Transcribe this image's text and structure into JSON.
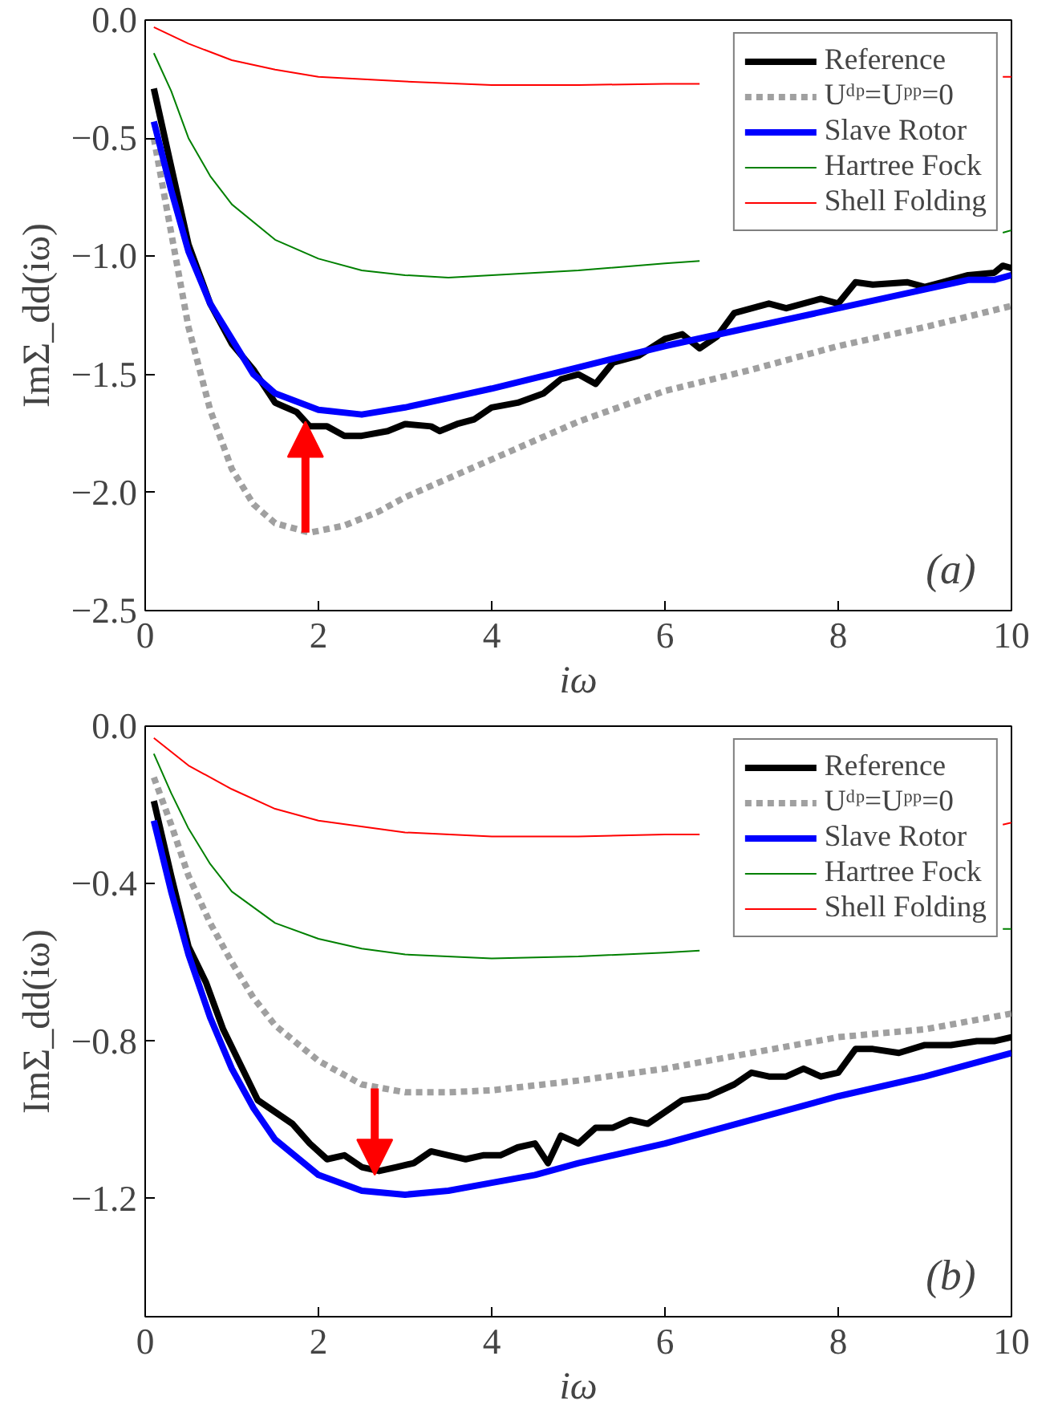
{
  "chart_data": [
    {
      "type": "line",
      "xlabel": "iω",
      "ylabel": "ImΣ_dd(iω)",
      "xlim": [
        0,
        10
      ],
      "ylim": [
        -2.5,
        0
      ],
      "xticks": [
        0,
        2,
        4,
        6,
        8,
        10
      ],
      "yticks": [
        {
          "value": 0,
          "label": "0.0"
        },
        {
          "value": -0.5,
          "label": "−0.5"
        },
        {
          "value": -1,
          "label": "−1.0"
        },
        {
          "value": -1.5,
          "label": "−1.5"
        },
        {
          "value": -2,
          "label": "−2.0"
        },
        {
          "value": -2.5,
          "label": "−2.5"
        }
      ],
      "grid": false,
      "legend": "top right",
      "annotations": [
        "(a)"
      ],
      "series": [
        {
          "name": "Reference",
          "color": "#000000",
          "line_style": "solid",
          "x": [
            0.1,
            0.3,
            0.5,
            0.75,
            1,
            1.25,
            1.5,
            1.75,
            1.9,
            2.1,
            2.3,
            2.5,
            2.8,
            3.0,
            3.3,
            3.4,
            3.6,
            3.8,
            4.0,
            4.3,
            4.6,
            4.8,
            5.0,
            5.2,
            5.4,
            5.7,
            6.0,
            6.2,
            6.4,
            6.6,
            6.8,
            7.2,
            7.4,
            7.8,
            8.0,
            8.2,
            8.4,
            8.8,
            9.0,
            9.2,
            9.5,
            9.8,
            9.9,
            10
          ],
          "values": [
            -0.29,
            -0.62,
            -0.95,
            -1.2,
            -1.37,
            -1.48,
            -1.62,
            -1.66,
            -1.72,
            -1.72,
            -1.76,
            -1.76,
            -1.74,
            -1.71,
            -1.72,
            -1.74,
            -1.71,
            -1.69,
            -1.64,
            -1.62,
            -1.58,
            -1.52,
            -1.5,
            -1.54,
            -1.45,
            -1.42,
            -1.35,
            -1.33,
            -1.39,
            -1.34,
            -1.24,
            -1.2,
            -1.22,
            -1.18,
            -1.2,
            -1.11,
            -1.12,
            -1.11,
            -1.13,
            -1.11,
            -1.08,
            -1.07,
            -1.04,
            -1.05
          ]
        },
        {
          "name": "Uᵈᵖ=Uᵖᵖ=0",
          "color": "#a0a0a0",
          "line_style": "dashed",
          "x": [
            0.1,
            0.3,
            0.5,
            0.75,
            1,
            1.25,
            1.5,
            1.9,
            2.3,
            2.7,
            3,
            3.5,
            4,
            4.5,
            5,
            6,
            7,
            8,
            9,
            10
          ],
          "values": [
            -0.5,
            -0.9,
            -1.3,
            -1.65,
            -1.9,
            -2.05,
            -2.13,
            -2.17,
            -2.14,
            -2.08,
            -2.02,
            -1.94,
            -1.86,
            -1.78,
            -1.7,
            -1.57,
            -1.48,
            -1.38,
            -1.3,
            -1.21
          ]
        },
        {
          "name": "Slave Rotor",
          "color": "#0000ff",
          "line_style": "solid",
          "x": [
            0.1,
            0.3,
            0.5,
            0.75,
            1,
            1.25,
            1.5,
            2,
            2.5,
            3,
            3.5,
            4,
            5,
            6,
            7,
            8,
            9,
            9.5,
            9.8,
            10
          ],
          "values": [
            -0.43,
            -0.72,
            -0.98,
            -1.2,
            -1.35,
            -1.5,
            -1.58,
            -1.65,
            -1.67,
            -1.64,
            -1.6,
            -1.56,
            -1.47,
            -1.38,
            -1.3,
            -1.22,
            -1.14,
            -1.1,
            -1.1,
            -1.08
          ]
        },
        {
          "name": "Hartree Fock",
          "color": "#008000",
          "line_style": "solid",
          "x": [
            0.1,
            0.3,
            0.5,
            0.75,
            1,
            1.5,
            2,
            2.5,
            3,
            3.5,
            4,
            5,
            6,
            6.4,
            8,
            9.9,
            10
          ],
          "values": [
            -0.14,
            -0.3,
            -0.5,
            -0.66,
            -0.78,
            -0.93,
            -1.01,
            -1.06,
            -1.08,
            -1.09,
            -1.08,
            -1.06,
            -1.03,
            -1.02,
            null,
            -0.9,
            -0.89
          ]
        },
        {
          "name": "Shell Folding",
          "color": "#ff0000",
          "line_style": "solid",
          "x": [
            0.1,
            0.5,
            1,
            1.5,
            2,
            3,
            4,
            5,
            6,
            6.4,
            8,
            9.9,
            10
          ],
          "values": [
            -0.03,
            -0.1,
            -0.17,
            -0.21,
            -0.24,
            -0.26,
            -0.275,
            -0.275,
            -0.27,
            -0.27,
            null,
            -0.24,
            -0.24
          ]
        }
      ]
    },
    {
      "type": "line",
      "xlabel": "iω",
      "ylabel": "ImΣ_dd(iω)",
      "xlim": [
        0,
        10
      ],
      "ylim": [
        -1.5,
        0
      ],
      "xticks": [
        0,
        2,
        4,
        6,
        8,
        10
      ],
      "yticks": [
        {
          "value": 0,
          "label": "0.0"
        },
        {
          "value": -0.4,
          "label": "−0.4"
        },
        {
          "value": -0.8,
          "label": "−0.8"
        },
        {
          "value": -1.2,
          "label": "−1.2"
        }
      ],
      "grid": false,
      "legend": "top right",
      "annotations": [
        "(b)"
      ],
      "series": [
        {
          "name": "Reference",
          "color": "#000000",
          "line_style": "solid",
          "x": [
            0.1,
            0.3,
            0.5,
            0.7,
            0.9,
            1.1,
            1.3,
            1.5,
            1.7,
            1.9,
            2.1,
            2.3,
            2.5,
            2.7,
            2.9,
            3.1,
            3.3,
            3.5,
            3.7,
            3.9,
            4.1,
            4.3,
            4.5,
            4.65,
            4.8,
            5.0,
            5.2,
            5.4,
            5.6,
            5.8,
            6.0,
            6.2,
            6.5,
            6.8,
            7.0,
            7.2,
            7.4,
            7.6,
            7.8,
            8.0,
            8.2,
            8.4,
            8.7,
            9.0,
            9.3,
            9.6,
            9.8,
            10
          ],
          "values": [
            -0.19,
            -0.38,
            -0.56,
            -0.65,
            -0.77,
            -0.86,
            -0.95,
            -0.98,
            -1.01,
            -1.06,
            -1.1,
            -1.09,
            -1.12,
            -1.13,
            -1.12,
            -1.11,
            -1.08,
            -1.09,
            -1.1,
            -1.09,
            -1.09,
            -1.07,
            -1.06,
            -1.11,
            -1.04,
            -1.06,
            -1.02,
            -1.02,
            -1.0,
            -1.01,
            -0.98,
            -0.95,
            -0.94,
            -0.91,
            -0.88,
            -0.89,
            -0.89,
            -0.87,
            -0.89,
            -0.88,
            -0.82,
            -0.82,
            -0.83,
            -0.81,
            -0.81,
            -0.8,
            -0.8,
            -0.79
          ]
        },
        {
          "name": "Uᵈᵖ=Uᵖᵖ=0",
          "color": "#a0a0a0",
          "line_style": "dashed",
          "x": [
            0.1,
            0.3,
            0.5,
            0.75,
            1,
            1.25,
            1.5,
            2,
            2.5,
            3,
            3.5,
            4,
            5,
            6,
            7,
            8,
            9,
            10
          ],
          "values": [
            -0.13,
            -0.25,
            -0.38,
            -0.5,
            -0.6,
            -0.69,
            -0.76,
            -0.85,
            -0.91,
            -0.93,
            -0.93,
            -0.925,
            -0.9,
            -0.87,
            -0.83,
            -0.79,
            -0.77,
            -0.73
          ]
        },
        {
          "name": "Slave Rotor",
          "color": "#0000ff",
          "line_style": "solid",
          "x": [
            0.1,
            0.3,
            0.5,
            0.75,
            1,
            1.25,
            1.5,
            2,
            2.5,
            3,
            3.5,
            4,
            4.5,
            5,
            6,
            7,
            8,
            9,
            10
          ],
          "values": [
            -0.24,
            -0.42,
            -0.58,
            -0.74,
            -0.87,
            -0.97,
            -1.05,
            -1.14,
            -1.18,
            -1.19,
            -1.18,
            -1.16,
            -1.14,
            -1.11,
            -1.06,
            -1.0,
            -0.94,
            -0.89,
            -0.83
          ]
        },
        {
          "name": "Hartree Fock",
          "color": "#008000",
          "line_style": "solid",
          "x": [
            0.1,
            0.3,
            0.5,
            0.75,
            1,
            1.5,
            2,
            2.5,
            3,
            4,
            5,
            6,
            6.4,
            8,
            9.9,
            10
          ],
          "values": [
            -0.07,
            -0.17,
            -0.26,
            -0.35,
            -0.42,
            -0.5,
            -0.54,
            -0.565,
            -0.58,
            -0.59,
            -0.585,
            -0.575,
            -0.57,
            null,
            -0.515,
            -0.515
          ]
        },
        {
          "name": "Shell Folding",
          "color": "#ff0000",
          "line_style": "solid",
          "x": [
            0.1,
            0.5,
            1,
            1.5,
            2,
            3,
            4,
            5,
            6,
            6.4,
            8,
            9.9,
            10
          ],
          "values": [
            -0.03,
            -0.1,
            -0.16,
            -0.21,
            -0.24,
            -0.27,
            -0.28,
            -0.28,
            -0.275,
            -0.275,
            null,
            -0.25,
            -0.245
          ]
        }
      ]
    }
  ]
}
